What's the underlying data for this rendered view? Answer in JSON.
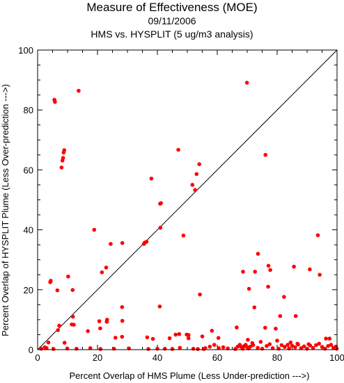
{
  "chart_data": {
    "type": "scatter",
    "title": "Measure of Effectiveness (MOE)",
    "subtitle_date": "09/11/2006",
    "subtitle_analysis": "HMS vs. HYSPLIT  (5 ug/m3 analysis)",
    "xlabel": "Percent Overlap of HMS Plume (Less Under-prediction --->)",
    "ylabel": "Percent Overlap of HYSPLIT Plume (Less Over-prediction --->)",
    "xlim": [
      0,
      100
    ],
    "ylim": [
      0,
      100
    ],
    "xticks": [
      0,
      20,
      40,
      60,
      80,
      100
    ],
    "yticks": [
      0,
      20,
      40,
      60,
      80,
      100
    ],
    "grid": false,
    "reference_line": "y = x",
    "point_color": "#ff0000",
    "points": [
      [
        5.6,
        83.4
      ],
      [
        5.8,
        82.7
      ],
      [
        13.7,
        86.4
      ],
      [
        69.9,
        89.1
      ],
      [
        8.0,
        60.8
      ],
      [
        8.3,
        63.1
      ],
      [
        8.5,
        64.0
      ],
      [
        8.7,
        65.8
      ],
      [
        8.9,
        66.6
      ],
      [
        47.0,
        66.7
      ],
      [
        76.1,
        65.0
      ],
      [
        38.0,
        57.1
      ],
      [
        54.0,
        61.9
      ],
      [
        53.1,
        58.6
      ],
      [
        51.7,
        55.0
      ],
      [
        52.6,
        53.3
      ],
      [
        41.2,
        48.9
      ],
      [
        40.9,
        48.7
      ],
      [
        18.9,
        40.0
      ],
      [
        41.0,
        40.7
      ],
      [
        48.7,
        38.1
      ],
      [
        93.6,
        38.2
      ],
      [
        24.4,
        35.3
      ],
      [
        28.3,
        35.6
      ],
      [
        35.8,
        35.7
      ],
      [
        36.4,
        36.0
      ],
      [
        35.5,
        35.3
      ],
      [
        73.6,
        32.0
      ],
      [
        77.1,
        28.0
      ],
      [
        77.7,
        26.6
      ],
      [
        22.9,
        27.4
      ],
      [
        21.5,
        25.8
      ],
      [
        68.6,
        26.0
      ],
      [
        72.6,
        26.0
      ],
      [
        85.6,
        27.7
      ],
      [
        90.9,
        26.8
      ],
      [
        4.2,
        22.5
      ],
      [
        4.4,
        23.0
      ],
      [
        10.2,
        24.4
      ],
      [
        11.7,
        19.9
      ],
      [
        6.6,
        19.8
      ],
      [
        70.6,
        20.3
      ],
      [
        77.0,
        21.0
      ],
      [
        94.2,
        25.0
      ],
      [
        82.3,
        17.6
      ],
      [
        54.2,
        18.4
      ],
      [
        40.8,
        14.4
      ],
      [
        28.2,
        14.2
      ],
      [
        72.4,
        14.1
      ],
      [
        86.2,
        11.2
      ],
      [
        81.0,
        11.2
      ],
      [
        11.8,
        11.0
      ],
      [
        23.2,
        10.0
      ],
      [
        23.1,
        9.3
      ],
      [
        20.6,
        9.5
      ],
      [
        28.3,
        9.6
      ],
      [
        11.4,
        8.4
      ],
      [
        12.1,
        8.3
      ],
      [
        7.2,
        8.0
      ],
      [
        6.8,
        6.5
      ],
      [
        16.8,
        6.2
      ],
      [
        20.9,
        7.1
      ],
      [
        66.5,
        7.4
      ],
      [
        76.0,
        7.3
      ],
      [
        79.5,
        7.0
      ],
      [
        58.2,
        6.3
      ],
      [
        46.1,
        5.0
      ],
      [
        47.3,
        5.2
      ],
      [
        49.8,
        5.0
      ],
      [
        50.4,
        4.9
      ],
      [
        50.4,
        3.8
      ],
      [
        26.0,
        4.0
      ],
      [
        28.2,
        4.3
      ],
      [
        36.6,
        4.1
      ],
      [
        38.5,
        3.6
      ],
      [
        44.1,
        3.8
      ],
      [
        55.0,
        4.4
      ],
      [
        60.4,
        3.9
      ],
      [
        70.2,
        3.3
      ],
      [
        71.7,
        2.2
      ],
      [
        74.5,
        2.6
      ],
      [
        80.0,
        3.0
      ],
      [
        84.5,
        2.4
      ],
      [
        86.8,
        2.0
      ],
      [
        90.5,
        1.8
      ],
      [
        96.3,
        3.7
      ],
      [
        97.5,
        3.7
      ],
      [
        3.6,
        2.4
      ],
      [
        9.0,
        2.3
      ],
      [
        1.2,
        0.3
      ],
      [
        2.4,
        0.8
      ],
      [
        3.0,
        0.5
      ],
      [
        5.3,
        0.2
      ],
      [
        9.9,
        0.4
      ],
      [
        13.0,
        0.3
      ],
      [
        17.6,
        0.5
      ],
      [
        21.0,
        0.2
      ],
      [
        25.5,
        0.3
      ],
      [
        30.5,
        0.4
      ],
      [
        37.0,
        0.2
      ],
      [
        40.0,
        0.3
      ],
      [
        42.5,
        0.3
      ],
      [
        45.0,
        0.2
      ],
      [
        47.5,
        0.6
      ],
      [
        52.0,
        0.3
      ],
      [
        53.5,
        0.2
      ],
      [
        55.5,
        0.2
      ],
      [
        56.0,
        0.5
      ],
      [
        57.5,
        1.0
      ],
      [
        59.0,
        1.6
      ],
      [
        60.5,
        0.5
      ],
      [
        62.0,
        0.8
      ],
      [
        63.5,
        0.4
      ],
      [
        66.0,
        0.2
      ],
      [
        66.8,
        1.0
      ],
      [
        67.5,
        1.6
      ],
      [
        68.0,
        0.9
      ],
      [
        68.5,
        0.3
      ],
      [
        69.0,
        1.2
      ],
      [
        69.5,
        1.6
      ],
      [
        70.0,
        0.8
      ],
      [
        70.5,
        0.4
      ],
      [
        71.0,
        1.0
      ],
      [
        72.0,
        1.5
      ],
      [
        73.5,
        0.6
      ],
      [
        75.0,
        0.3
      ],
      [
        76.5,
        1.2
      ],
      [
        77.5,
        1.8
      ],
      [
        78.5,
        0.5
      ],
      [
        80.5,
        0.3
      ],
      [
        81.5,
        1.5
      ],
      [
        82.5,
        0.9
      ],
      [
        83.5,
        1.6
      ],
      [
        84.0,
        0.4
      ],
      [
        85.0,
        1.3
      ],
      [
        86.0,
        0.8
      ],
      [
        87.0,
        1.7
      ],
      [
        88.0,
        0.5
      ],
      [
        89.0,
        1.1
      ],
      [
        90.0,
        0.3
      ],
      [
        91.0,
        1.4
      ],
      [
        92.0,
        0.6
      ],
      [
        93.0,
        1.5
      ],
      [
        94.0,
        2.0
      ],
      [
        95.0,
        0.9
      ],
      [
        96.0,
        0.3
      ],
      [
        97.0,
        1.2
      ],
      [
        98.0,
        1.6
      ],
      [
        98.8,
        0.6
      ],
      [
        99.6,
        1.0
      ],
      [
        99.9,
        0.3
      ]
    ]
  }
}
